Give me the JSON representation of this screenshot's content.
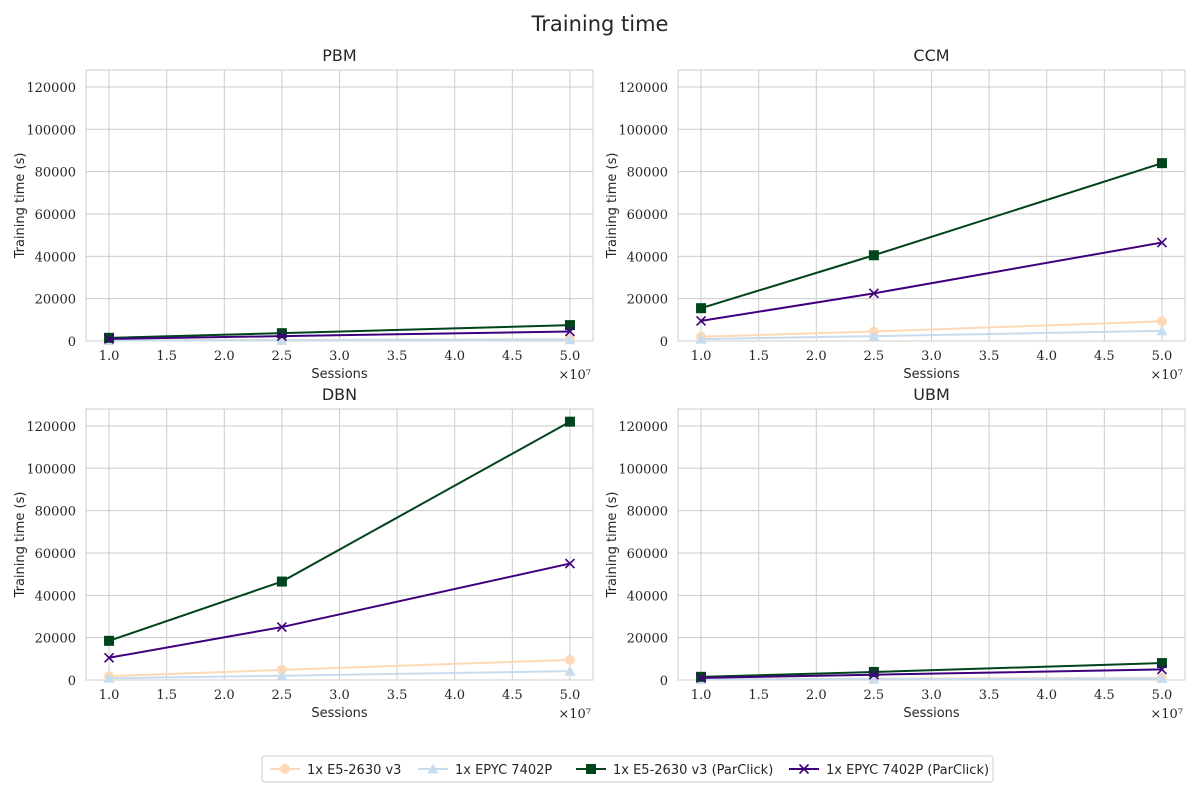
{
  "figure": {
    "title": "Training time"
  },
  "colors": {
    "grid": "#cccccc",
    "spine": "#cccccc",
    "text": "#262626",
    "series": [
      "#fdd9b5",
      "#c8dcef",
      "#00441b",
      "#3f007d"
    ]
  },
  "legend": {
    "placement": "bottom-center",
    "entries": [
      {
        "label": "1x E5-2630 v3",
        "marker": "circle"
      },
      {
        "label": "1x EPYC 7402P",
        "marker": "triangle"
      },
      {
        "label": "1x E5-2630 v3 (ParClick)",
        "marker": "square"
      },
      {
        "label": "1x EPYC 7402P (ParClick)",
        "marker": "x"
      }
    ]
  },
  "chart_data": [
    {
      "type": "line",
      "title": "PBM",
      "xlabel": "Sessions",
      "ylabel": "Training time (s)",
      "x_offset_label": "×10⁷",
      "x": [
        1.0,
        2.5,
        5.0
      ],
      "xlim": [
        0.8,
        5.2
      ],
      "xticks": [
        1.0,
        1.5,
        2.0,
        2.5,
        3.0,
        3.5,
        4.0,
        4.5,
        5.0
      ],
      "ylim": [
        0,
        128000
      ],
      "yticks": [
        0,
        20000,
        40000,
        60000,
        80000,
        100000,
        120000
      ],
      "grid": true,
      "series": [
        {
          "name": "1x E5-2630 v3",
          "values": [
            300,
            500,
            900
          ]
        },
        {
          "name": "1x EPYC 7402P",
          "values": [
            200,
            300,
            600
          ]
        },
        {
          "name": "1x E5-2630 v3 (ParClick)",
          "values": [
            1500,
            3700,
            7500
          ]
        },
        {
          "name": "1x EPYC 7402P (ParClick)",
          "values": [
            1000,
            2300,
            4500
          ]
        }
      ]
    },
    {
      "type": "line",
      "title": "CCM",
      "xlabel": "Sessions",
      "ylabel": "Training time (s)",
      "x_offset_label": "×10⁷",
      "x": [
        1.0,
        2.5,
        5.0
      ],
      "xlim": [
        0.8,
        5.2
      ],
      "xticks": [
        1.0,
        1.5,
        2.0,
        2.5,
        3.0,
        3.5,
        4.0,
        4.5,
        5.0
      ],
      "ylim": [
        0,
        128000
      ],
      "yticks": [
        0,
        20000,
        40000,
        60000,
        80000,
        100000,
        120000
      ],
      "grid": true,
      "series": [
        {
          "name": "1x E5-2630 v3",
          "values": [
            2000,
            4500,
            9300
          ]
        },
        {
          "name": "1x EPYC 7402P",
          "values": [
            900,
            2300,
            4800
          ]
        },
        {
          "name": "1x E5-2630 v3 (ParClick)",
          "values": [
            15500,
            40500,
            84000
          ]
        },
        {
          "name": "1x EPYC 7402P (ParClick)",
          "values": [
            9500,
            22500,
            46500
          ]
        }
      ]
    },
    {
      "type": "line",
      "title": "DBN",
      "xlabel": "Sessions",
      "ylabel": "Training time (s)",
      "x_offset_label": "×10⁷",
      "x": [
        1.0,
        2.5,
        5.0
      ],
      "xlim": [
        0.8,
        5.2
      ],
      "xticks": [
        1.0,
        1.5,
        2.0,
        2.5,
        3.0,
        3.5,
        4.0,
        4.5,
        5.0
      ],
      "ylim": [
        0,
        128000
      ],
      "yticks": [
        0,
        20000,
        40000,
        60000,
        80000,
        100000,
        120000
      ],
      "grid": true,
      "series": [
        {
          "name": "1x E5-2630 v3",
          "values": [
            1800,
            4800,
            9500
          ]
        },
        {
          "name": "1x EPYC 7402P",
          "values": [
            800,
            2000,
            4200
          ]
        },
        {
          "name": "1x E5-2630 v3 (ParClick)",
          "values": [
            18500,
            46500,
            122000
          ]
        },
        {
          "name": "1x EPYC 7402P (ParClick)",
          "values": [
            10500,
            25000,
            55000
          ]
        }
      ]
    },
    {
      "type": "line",
      "title": "UBM",
      "xlabel": "Sessions",
      "ylabel": "Training time (s)",
      "x_offset_label": "×10⁷",
      "x": [
        1.0,
        2.5,
        5.0
      ],
      "xlim": [
        0.8,
        5.2
      ],
      "xticks": [
        1.0,
        1.5,
        2.0,
        2.5,
        3.0,
        3.5,
        4.0,
        4.5,
        5.0
      ],
      "ylim": [
        0,
        128000
      ],
      "yticks": [
        0,
        20000,
        40000,
        60000,
        80000,
        100000,
        120000
      ],
      "grid": true,
      "series": [
        {
          "name": "1x E5-2630 v3",
          "values": [
            300,
            600,
            1000
          ]
        },
        {
          "name": "1x EPYC 7402P",
          "values": [
            200,
            400,
            700
          ]
        },
        {
          "name": "1x E5-2630 v3 (ParClick)",
          "values": [
            1500,
            3800,
            8000
          ]
        },
        {
          "name": "1x EPYC 7402P (ParClick)",
          "values": [
            1000,
            2500,
            5000
          ]
        }
      ]
    }
  ]
}
